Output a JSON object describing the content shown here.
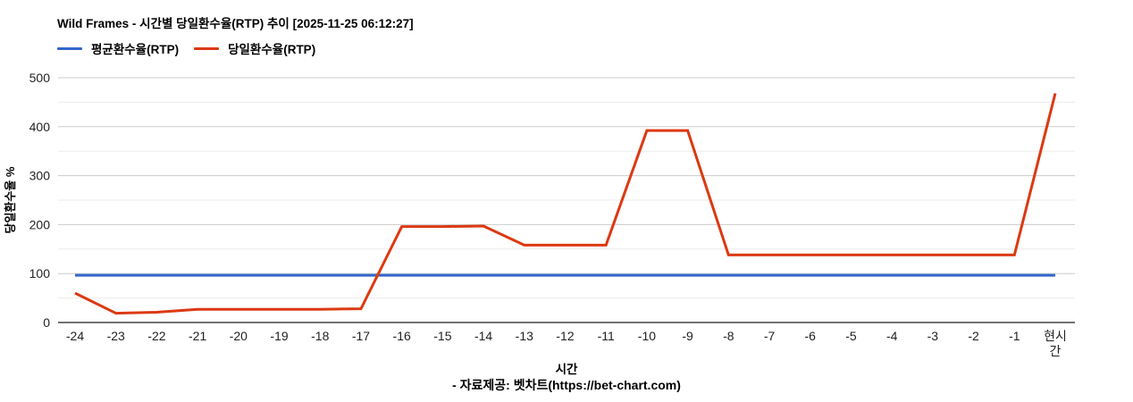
{
  "header": {
    "title": "Wild Frames - 시간별 당일환수율(RTP) 추이 [2025-11-25 06:12:27]"
  },
  "legend": {
    "items": [
      {
        "label": "평균환수율(RTP)",
        "color": "#3366cc"
      },
      {
        "label": "당일환수율(RTP)",
        "color": "#dc3912"
      }
    ]
  },
  "footer": {
    "xlabel": "시간",
    "source": "- 자료제공: 벳차트(https://bet-chart.com)"
  },
  "chart_data": {
    "type": "line",
    "title": "Wild Frames - 시간별 당일환수율(RTP) 추이 [2025-11-25 06:12:27]",
    "xlabel": "시간",
    "ylabel": "당일환수율 %",
    "ylim": [
      0,
      500
    ],
    "yticks": [
      0,
      100,
      200,
      300,
      400,
      500
    ],
    "minor_grid_step": 50,
    "grid": true,
    "legend_position": "top",
    "categories": [
      "-24",
      "-23",
      "-22",
      "-21",
      "-20",
      "-19",
      "-18",
      "-17",
      "-16",
      "-15",
      "-14",
      "-13",
      "-12",
      "-11",
      "-10",
      "-9",
      "-8",
      "-7",
      "-6",
      "-5",
      "-4",
      "-3",
      "-2",
      "-1",
      "현시간"
    ],
    "series": [
      {
        "name": "평균환수율(RTP)",
        "color": "#3366cc",
        "values": [
          96.5,
          96.5,
          96.5,
          96.5,
          96.5,
          96.5,
          96.5,
          96.5,
          96.5,
          96.5,
          96.5,
          96.5,
          96.5,
          96.5,
          96.5,
          96.5,
          96.5,
          96.5,
          96.5,
          96.5,
          96.5,
          96.5,
          96.5,
          96.5,
          96.5
        ]
      },
      {
        "name": "당일환수율(RTP)",
        "color": "#dc3912",
        "values": [
          60,
          19,
          21,
          27,
          27,
          27,
          27,
          28,
          196,
          196,
          197,
          158,
          158,
          158,
          392,
          392,
          138,
          138,
          138,
          138,
          138,
          138,
          138,
          138,
          468
        ]
      }
    ],
    "grid_colors": {
      "major": "#cccccc",
      "minor": "#ebebeb",
      "baseline": "#424242"
    }
  }
}
